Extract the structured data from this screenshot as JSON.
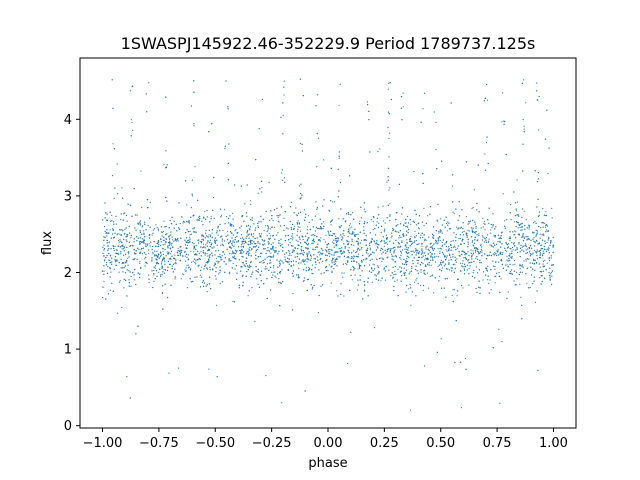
{
  "chart_data": {
    "type": "scatter",
    "title": "1SWASPJ145922.46-352229.9 Period 1789737.125s",
    "xlabel": "phase",
    "ylabel": "flux",
    "xlim": [
      -1.1,
      1.1
    ],
    "ylim": [
      -0.03,
      4.8
    ],
    "xticks": [
      -1.0,
      -0.75,
      -0.5,
      -0.25,
      0.0,
      0.25,
      0.5,
      0.75,
      1.0
    ],
    "xtick_labels": [
      "−1.00",
      "−0.75",
      "−0.50",
      "−0.25",
      "0.00",
      "0.25",
      "0.50",
      "0.75",
      "1.00"
    ],
    "yticks": [
      0,
      1,
      2,
      3,
      4
    ],
    "ytick_labels": [
      "0",
      "1",
      "2",
      "3",
      "4"
    ],
    "grid": false,
    "marker_color": "#1f77b4",
    "series": [
      {
        "baseline_flux": 2.3,
        "flux_spread_1sigma": 0.25,
        "flux_min": 0.2,
        "flux_max": 4.55,
        "phase_range": [
          -1.0,
          1.0
        ],
        "flare_phases": [
          -0.95,
          -0.87,
          -0.8,
          -0.72,
          -0.6,
          -0.52,
          -0.45,
          -0.3,
          -0.2,
          -0.12,
          -0.05,
          0.05,
          0.18,
          0.27,
          0.33,
          0.42,
          0.48,
          0.55,
          0.7,
          0.78,
          0.87,
          0.93,
          0.97
        ]
      }
    ]
  }
}
